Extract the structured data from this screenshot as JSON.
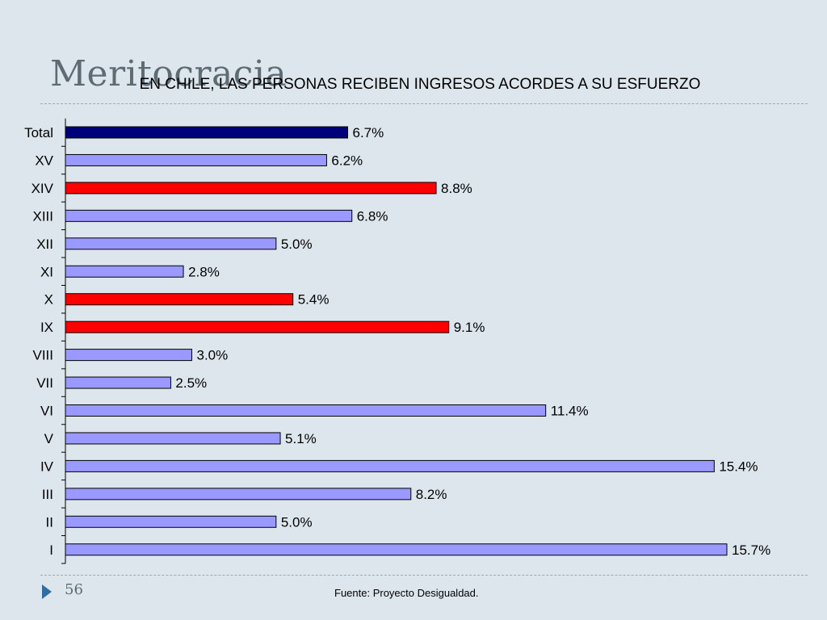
{
  "slide": {
    "title": "Meritocracia",
    "page_number": "56",
    "source": "Fuente: Proyecto Desigualdad."
  },
  "colors": {
    "total": "#00007a",
    "highlight": "#ff0000",
    "default": "#9999ff"
  },
  "chart_data": {
    "type": "bar",
    "orientation": "horizontal",
    "title": "EN CHILE, LAS PERSONAS RECIBEN INGRESOS ACORDES A SU ESFUERZO",
    "categories": [
      "Total",
      "XV",
      "XIV",
      "XIII",
      "XII",
      "XI",
      "X",
      "IX",
      "VIII",
      "VII",
      "VI",
      "V",
      "IV",
      "III",
      "II",
      "I"
    ],
    "values": [
      6.7,
      6.2,
      8.8,
      6.8,
      5.0,
      2.8,
      5.4,
      9.1,
      3.0,
      2.5,
      11.4,
      5.1,
      15.4,
      8.2,
      5.0,
      15.7
    ],
    "labels": [
      "6.7%",
      "6.2%",
      "8.8%",
      "6.8%",
      "5.0%",
      "2.8%",
      "5.4%",
      "9.1%",
      "3.0%",
      "2.5%",
      "11.4%",
      "5.1%",
      "15.4%",
      "8.2%",
      "5.0%",
      "15.7%"
    ],
    "bar_colors": [
      "total",
      "default",
      "highlight",
      "default",
      "default",
      "default",
      "highlight",
      "highlight",
      "default",
      "default",
      "default",
      "default",
      "default",
      "default",
      "default",
      "default"
    ],
    "xlim": [
      0,
      15.7
    ],
    "grid": false,
    "legend": false
  }
}
